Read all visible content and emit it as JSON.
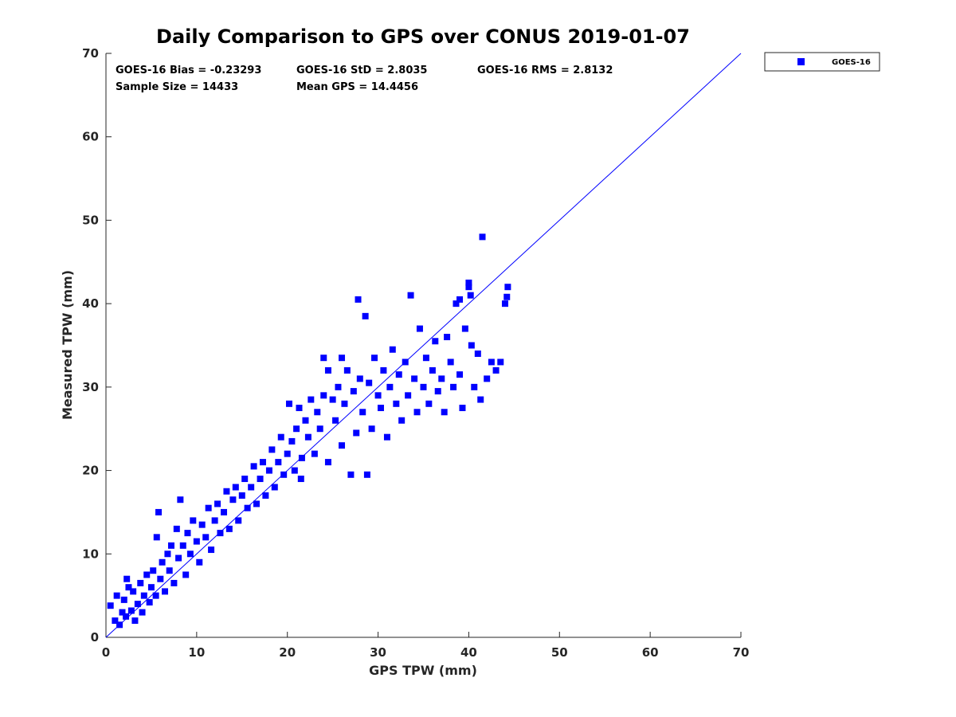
{
  "chart_data": {
    "type": "scatter",
    "title": "Daily Comparison to GPS over CONUS 2019-01-07",
    "xlabel": "GPS TPW (mm)",
    "ylabel": "Measured TPW (mm)",
    "xlim": [
      0,
      70
    ],
    "ylim": [
      0,
      70
    ],
    "xticks": [
      "0",
      "10",
      "20",
      "30",
      "40",
      "50",
      "60",
      "70"
    ],
    "yticks": [
      "0",
      "10",
      "20",
      "30",
      "40",
      "50",
      "60",
      "70"
    ],
    "grid": false,
    "legend": {
      "position": "top-right-outside",
      "entries": [
        "GOES-16"
      ]
    },
    "stats": {
      "bias": "GOES-16 Bias = -0.23293",
      "std": "GOES-16 StD = 2.8035",
      "rms": "GOES-16 RMS = 2.8132",
      "sample": "Sample Size = 14433",
      "mean": "Mean GPS = 14.4456"
    },
    "reference_line": {
      "name": "1:1 line",
      "x": [
        0,
        70
      ],
      "y": [
        0,
        70
      ]
    },
    "series": [
      {
        "name": "GOES-16",
        "color": "#0000ff",
        "marker": "square",
        "points": [
          [
            0.5,
            3.8
          ],
          [
            1.0,
            2.0
          ],
          [
            1.2,
            5.0
          ],
          [
            1.5,
            1.5
          ],
          [
            1.8,
            3.0
          ],
          [
            2.0,
            4.5
          ],
          [
            2.2,
            2.5
          ],
          [
            2.5,
            6.0
          ],
          [
            2.3,
            7.0
          ],
          [
            2.8,
            3.2
          ],
          [
            3.0,
            5.5
          ],
          [
            3.2,
            2.0
          ],
          [
            3.5,
            4.0
          ],
          [
            3.8,
            6.5
          ],
          [
            4.0,
            3.0
          ],
          [
            4.2,
            5.0
          ],
          [
            4.5,
            7.5
          ],
          [
            4.8,
            4.2
          ],
          [
            5.0,
            6.0
          ],
          [
            5.2,
            8.0
          ],
          [
            5.5,
            5.0
          ],
          [
            5.8,
            15.0
          ],
          [
            5.6,
            12.0
          ],
          [
            6.0,
            7.0
          ],
          [
            6.2,
            9.0
          ],
          [
            6.5,
            5.5
          ],
          [
            6.8,
            10.0
          ],
          [
            7.0,
            8.0
          ],
          [
            7.2,
            11.0
          ],
          [
            7.5,
            6.5
          ],
          [
            7.8,
            13.0
          ],
          [
            8.0,
            9.5
          ],
          [
            8.2,
            16.5
          ],
          [
            8.5,
            11.0
          ],
          [
            8.8,
            7.5
          ],
          [
            9.0,
            12.5
          ],
          [
            9.3,
            10.0
          ],
          [
            9.6,
            14.0
          ],
          [
            10.0,
            11.5
          ],
          [
            10.3,
            9.0
          ],
          [
            10.6,
            13.5
          ],
          [
            11.0,
            12.0
          ],
          [
            11.3,
            15.5
          ],
          [
            11.6,
            10.5
          ],
          [
            12.0,
            14.0
          ],
          [
            12.3,
            16.0
          ],
          [
            12.6,
            12.5
          ],
          [
            13.0,
            15.0
          ],
          [
            13.3,
            17.5
          ],
          [
            13.6,
            13.0
          ],
          [
            14.0,
            16.5
          ],
          [
            14.3,
            18.0
          ],
          [
            14.6,
            14.0
          ],
          [
            15.0,
            17.0
          ],
          [
            15.3,
            19.0
          ],
          [
            15.6,
            15.5
          ],
          [
            16.0,
            18.0
          ],
          [
            16.3,
            20.5
          ],
          [
            16.6,
            16.0
          ],
          [
            17.0,
            19.0
          ],
          [
            17.3,
            21.0
          ],
          [
            17.6,
            17.0
          ],
          [
            18.0,
            20.0
          ],
          [
            18.3,
            22.5
          ],
          [
            18.6,
            18.0
          ],
          [
            19.0,
            21.0
          ],
          [
            19.3,
            24.0
          ],
          [
            19.6,
            19.5
          ],
          [
            20.0,
            22.0
          ],
          [
            20.2,
            28.0
          ],
          [
            20.5,
            23.5
          ],
          [
            20.8,
            20.0
          ],
          [
            21.0,
            25.0
          ],
          [
            21.3,
            27.5
          ],
          [
            21.6,
            21.5
          ],
          [
            22.0,
            26.0
          ],
          [
            22.3,
            24.0
          ],
          [
            22.6,
            28.5
          ],
          [
            23.0,
            22.0
          ],
          [
            23.3,
            27.0
          ],
          [
            23.6,
            25.0
          ],
          [
            24.0,
            29.0
          ],
          [
            24.0,
            33.5
          ],
          [
            24.5,
            21.0
          ],
          [
            25.0,
            28.5
          ],
          [
            25.3,
            26.0
          ],
          [
            25.6,
            30.0
          ],
          [
            26.0,
            23.0
          ],
          [
            26.3,
            28.0
          ],
          [
            26.6,
            32.0
          ],
          [
            27.0,
            19.5
          ],
          [
            27.3,
            29.5
          ],
          [
            27.6,
            24.5
          ],
          [
            27.8,
            40.5
          ],
          [
            28.0,
            31.0
          ],
          [
            28.3,
            27.0
          ],
          [
            28.6,
            38.5
          ],
          [
            28.8,
            19.5
          ],
          [
            29.0,
            30.5
          ],
          [
            29.3,
            25.0
          ],
          [
            29.6,
            33.5
          ],
          [
            30.0,
            29.0
          ],
          [
            30.3,
            27.5
          ],
          [
            30.6,
            32.0
          ],
          [
            31.0,
            24.0
          ],
          [
            31.3,
            30.0
          ],
          [
            31.6,
            34.5
          ],
          [
            32.0,
            28.0
          ],
          [
            32.3,
            31.5
          ],
          [
            32.6,
            26.0
          ],
          [
            33.0,
            33.0
          ],
          [
            33.3,
            29.0
          ],
          [
            33.6,
            41.0
          ],
          [
            34.0,
            31.0
          ],
          [
            34.3,
            27.0
          ],
          [
            34.6,
            37.0
          ],
          [
            35.0,
            30.0
          ],
          [
            35.3,
            33.5
          ],
          [
            35.6,
            28.0
          ],
          [
            36.0,
            32.0
          ],
          [
            36.3,
            35.5
          ],
          [
            36.6,
            29.5
          ],
          [
            37.0,
            31.0
          ],
          [
            37.3,
            27.0
          ],
          [
            37.6,
            36.0
          ],
          [
            38.0,
            33.0
          ],
          [
            38.3,
            30.0
          ],
          [
            38.6,
            40.0
          ],
          [
            39.0,
            31.5
          ],
          [
            39.3,
            27.5
          ],
          [
            39.6,
            37.0
          ],
          [
            40.0,
            42.5
          ],
          [
            40.3,
            35.0
          ],
          [
            40.6,
            30.0
          ],
          [
            41.0,
            34.0
          ],
          [
            41.3,
            28.5
          ],
          [
            41.5,
            48.0
          ],
          [
            42.0,
            31.0
          ],
          [
            42.5,
            33.0
          ],
          [
            43.0,
            32.0
          ],
          [
            43.5,
            33.0
          ],
          [
            44.0,
            40.0
          ],
          [
            44.3,
            42.0
          ],
          [
            44.2,
            40.8
          ],
          [
            40.0,
            42.0
          ],
          [
            40.2,
            41.0
          ],
          [
            39.0,
            40.5
          ],
          [
            26.0,
            33.5
          ],
          [
            24.5,
            32.0
          ],
          [
            21.5,
            19.0
          ]
        ]
      }
    ]
  }
}
